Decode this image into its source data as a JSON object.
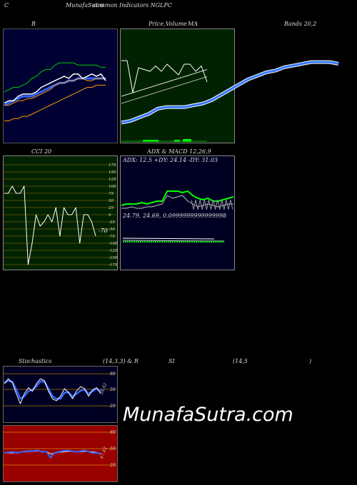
{
  "header": {
    "left": "C",
    "center": "MunafaSutra",
    "overlay": "common Indicators NGLPC"
  },
  "titles": {
    "bb_left": "B",
    "price": "Price,",
    "volume": "Volume",
    "ma": "MA",
    "bands": "Bands 20,2",
    "cci": "CCI 20",
    "adx_macd": "ADX  & MACD 12,26,9",
    "adx_line": "ADX: 12.5  +DY: 24.14  -DY: 31.03",
    "macd_line": "24.79,  24.69,  0.0999999999999998",
    "stoch_left": "Stochastics",
    "stoch_params": "(14,3,3) & R",
    "si": "SI",
    "rsi_params": "(14,5",
    "rsi_close": ")"
  },
  "watermark": "MunafaSutra.com",
  "colors": {
    "bb_bg": "#000033",
    "ma_bg": "#002200",
    "cci_bg": "#002200",
    "adx_bg": "#000022",
    "stoch_bg": "#000022",
    "rsi_bg": "#990000"
  },
  "chart_data": [
    {
      "type": "line",
      "panel": "bollinger",
      "series": [
        {
          "values": [
            12,
            12,
            13,
            14,
            14,
            15,
            15,
            16,
            17,
            18,
            19,
            21,
            22,
            22,
            23,
            23,
            24,
            24,
            23,
            23,
            24,
            24,
            24
          ]
        },
        {
          "values": [
            18,
            19,
            20,
            20,
            21,
            22,
            24,
            25,
            27,
            28,
            28,
            30,
            31,
            31,
            31,
            31,
            30,
            30,
            30,
            30,
            30,
            29,
            29
          ]
        },
        {
          "values": [
            5,
            5,
            6,
            6,
            7,
            7,
            8,
            9,
            10,
            11,
            12,
            13,
            14,
            15,
            16,
            17,
            18,
            19,
            20,
            20,
            21,
            21,
            21
          ]
        },
        {
          "values": [
            13,
            14,
            14,
            16,
            17,
            17,
            17,
            18,
            20,
            21,
            22,
            23,
            24,
            25,
            24,
            26,
            26,
            24,
            25,
            26,
            25,
            26,
            23
          ]
        },
        {
          "values": [
            12,
            13,
            14,
            15,
            16,
            16,
            16,
            17,
            18,
            19,
            20,
            21,
            22,
            22,
            23,
            23,
            24,
            24,
            24,
            24,
            24,
            24,
            24
          ]
        }
      ]
    },
    {
      "type": "line",
      "panel": "price-ma",
      "series": [
        {
          "values": [
            30,
            30,
            12,
            26,
            25,
            24,
            27,
            24,
            28,
            25,
            22,
            28,
            28,
            24,
            27,
            18
          ]
        },
        {
          "values": [
            10,
            11,
            12,
            13,
            14,
            15,
            16,
            17,
            18,
            19,
            20,
            21,
            22,
            23,
            24,
            25
          ]
        },
        {
          "values": [
            6,
            7,
            8,
            9,
            10,
            11,
            12,
            13,
            14,
            15,
            16,
            17,
            18,
            19,
            20,
            21
          ]
        }
      ]
    },
    {
      "type": "line",
      "panel": "ma-long",
      "series": [
        {
          "values": [
            5,
            6,
            8,
            10,
            13,
            14,
            14,
            14,
            15,
            16,
            18,
            21,
            24,
            27,
            30,
            32,
            34,
            35,
            37,
            38,
            39,
            40,
            40,
            40,
            39
          ]
        }
      ]
    },
    {
      "type": "line",
      "panel": "cci",
      "yticks": [
        "175",
        "150",
        "125",
        "100",
        "75",
        "50",
        "25",
        "0",
        "-25",
        "-50",
        "-75",
        "-100",
        "-125",
        "-150",
        "-175"
      ],
      "current_label": "-70",
      "series": [
        {
          "values": [
            75,
            75,
            100,
            75,
            75,
            100,
            -175,
            -100,
            0,
            -40,
            -25,
            0,
            -25,
            25,
            -75,
            25,
            0,
            0,
            25,
            -100,
            0,
            0,
            -25,
            -75
          ]
        }
      ]
    },
    {
      "type": "line",
      "panel": "adx",
      "series": [
        {
          "name": "+DY",
          "values": [
            5,
            6,
            6,
            6,
            7,
            6,
            7,
            8,
            8,
            15,
            15,
            15,
            14,
            15,
            12,
            10,
            9,
            10,
            8,
            8,
            9,
            10,
            11
          ]
        },
        {
          "name": "-DY",
          "values": [
            3,
            3,
            4,
            3,
            3,
            4,
            4,
            5,
            6,
            12,
            10,
            11,
            12,
            8,
            6,
            4,
            5,
            6,
            5,
            4,
            5,
            6,
            6
          ]
        }
      ]
    },
    {
      "type": "line",
      "panel": "stochastics",
      "yticks": [
        "80",
        "50",
        "20"
      ],
      "current_label": "59.62",
      "series": [
        {
          "values": [
            70,
            80,
            72,
            50,
            30,
            50,
            62,
            55,
            70,
            80,
            76,
            55,
            40,
            36,
            45,
            60,
            52,
            40,
            56,
            64,
            60,
            45,
            58,
            62,
            50
          ]
        },
        {
          "values": [
            72,
            76,
            74,
            58,
            40,
            45,
            55,
            58,
            65,
            75,
            74,
            60,
            45,
            40,
            40,
            52,
            53,
            44,
            50,
            56,
            58,
            50,
            55,
            60,
            55
          ]
        }
      ]
    },
    {
      "type": "line",
      "panel": "rsi",
      "yticks": [
        "80",
        "50",
        "20"
      ],
      "current_label": "47.43",
      "series": [
        {
          "values": [
            50,
            51,
            52,
            50,
            52,
            53,
            54,
            54,
            55,
            52,
            53,
            40,
            50,
            52,
            54,
            55,
            54,
            52,
            53,
            55,
            53,
            50,
            50,
            48
          ]
        },
        {
          "values": [
            50,
            50,
            50,
            51,
            52,
            52,
            53,
            53,
            54,
            53,
            53,
            48,
            49,
            51,
            52,
            53,
            53,
            53,
            52,
            53,
            53,
            52,
            51,
            49
          ]
        }
      ]
    }
  ]
}
